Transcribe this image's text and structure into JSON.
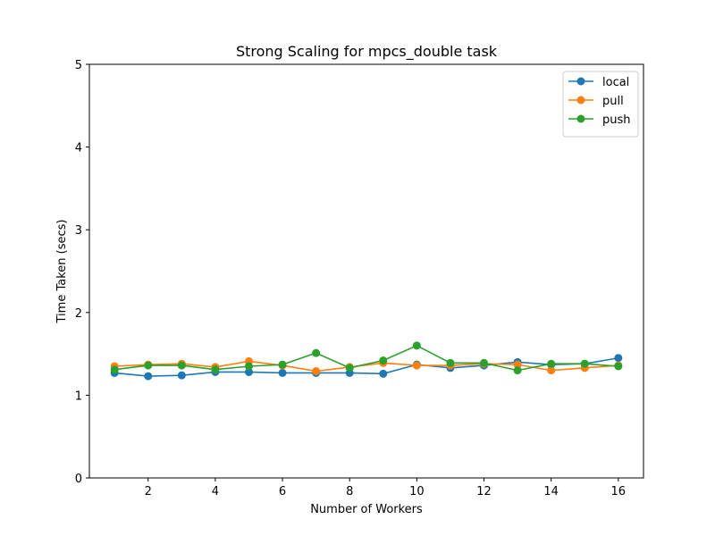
{
  "chart_data": {
    "type": "line",
    "title": "Strong Scaling for mpcs_double task",
    "xlabel": "Number of Workers",
    "ylabel": "Time Taken (secs)",
    "xlim": [
      0.25,
      16.75
    ],
    "ylim": [
      0,
      5
    ],
    "xticks": [
      2,
      4,
      6,
      8,
      10,
      12,
      14,
      16
    ],
    "yticks": [
      0,
      1,
      2,
      3,
      4,
      5
    ],
    "grid": false,
    "legend_position": "top-right",
    "x": [
      1,
      2,
      3,
      4,
      5,
      6,
      7,
      8,
      9,
      10,
      11,
      12,
      13,
      14,
      15,
      16
    ],
    "series": [
      {
        "name": "local",
        "color": "#1f77b4",
        "values": [
          1.27,
          1.23,
          1.24,
          1.28,
          1.28,
          1.27,
          1.27,
          1.27,
          1.26,
          1.37,
          1.33,
          1.36,
          1.4,
          1.37,
          1.38,
          1.45
        ]
      },
      {
        "name": "pull",
        "color": "#ff7f0e",
        "values": [
          1.35,
          1.37,
          1.38,
          1.34,
          1.41,
          1.36,
          1.29,
          1.34,
          1.39,
          1.36,
          1.36,
          1.38,
          1.37,
          1.3,
          1.33,
          1.36
        ]
      },
      {
        "name": "push",
        "color": "#2ca02c",
        "values": [
          1.31,
          1.36,
          1.36,
          1.31,
          1.35,
          1.37,
          1.51,
          1.33,
          1.42,
          1.6,
          1.39,
          1.39,
          1.3,
          1.38,
          1.38,
          1.35
        ]
      }
    ]
  }
}
